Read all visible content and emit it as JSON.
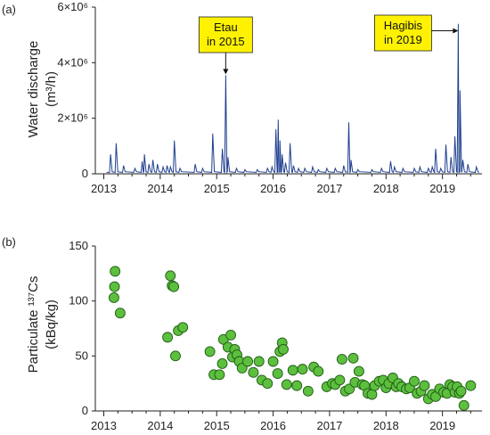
{
  "panel_a_label": "(a)",
  "panel_b_label": "(b)",
  "colors": {
    "discharge_line": "#1f3f8f",
    "marker_fill": "#5cbf3e",
    "marker_stroke": "#1f5c14",
    "annotation_fill": "#fff200"
  },
  "chart_data": [
    {
      "type": "line",
      "ylabel_line1": "Water discharge",
      "ylabel_line2": "(m³/h)",
      "yticks": [
        {
          "value": 0,
          "label": "0"
        },
        {
          "value": 2000000,
          "label": "2×10⁶"
        },
        {
          "value": 4000000,
          "label": "4×10⁶"
        },
        {
          "value": 6000000,
          "label": "6×10⁶"
        }
      ],
      "ylim": [
        0,
        6000000
      ],
      "xlim": [
        2012.85,
        2019.7
      ],
      "xticks": [
        {
          "value": 2013,
          "label": "2013"
        },
        {
          "value": 2014,
          "label": "2014"
        },
        {
          "value": 2015,
          "label": "2015"
        },
        {
          "value": 2016,
          "label": "2016"
        },
        {
          "value": 2017,
          "label": "2017"
        },
        {
          "value": 2018,
          "label": "2018"
        },
        {
          "value": 2019,
          "label": "2019"
        }
      ],
      "baseline": 50000,
      "peaks": [
        [
          2013.12,
          700000
        ],
        [
          2013.22,
          1100000
        ],
        [
          2013.35,
          300000
        ],
        [
          2013.55,
          200000
        ],
        [
          2013.68,
          450000
        ],
        [
          2013.72,
          700000
        ],
        [
          2013.8,
          350000
        ],
        [
          2013.87,
          500000
        ],
        [
          2013.95,
          350000
        ],
        [
          2014.05,
          250000
        ],
        [
          2014.12,
          300000
        ],
        [
          2014.18,
          250000
        ],
        [
          2014.25,
          1200000
        ],
        [
          2014.35,
          200000
        ],
        [
          2014.62,
          350000
        ],
        [
          2014.75,
          200000
        ],
        [
          2014.93,
          1450000
        ],
        [
          2015.1,
          900000
        ],
        [
          2015.16,
          3550000
        ],
        [
          2015.2,
          600000
        ],
        [
          2015.35,
          200000
        ],
        [
          2015.5,
          150000
        ],
        [
          2015.72,
          150000
        ],
        [
          2015.9,
          200000
        ],
        [
          2015.98,
          250000
        ],
        [
          2016.05,
          1600000
        ],
        [
          2016.09,
          1950000
        ],
        [
          2016.12,
          1200000
        ],
        [
          2016.16,
          700000
        ],
        [
          2016.22,
          400000
        ],
        [
          2016.3,
          1100000
        ],
        [
          2016.36,
          300000
        ],
        [
          2016.45,
          200000
        ],
        [
          2016.56,
          200000
        ],
        [
          2016.7,
          250000
        ],
        [
          2016.8,
          150000
        ],
        [
          2016.95,
          200000
        ],
        [
          2017.1,
          200000
        ],
        [
          2017.25,
          300000
        ],
        [
          2017.34,
          1850000
        ],
        [
          2017.38,
          500000
        ],
        [
          2017.5,
          150000
        ],
        [
          2017.75,
          150000
        ],
        [
          2017.92,
          200000
        ],
        [
          2018.08,
          450000
        ],
        [
          2018.15,
          250000
        ],
        [
          2018.3,
          200000
        ],
        [
          2018.5,
          200000
        ],
        [
          2018.6,
          250000
        ],
        [
          2018.75,
          200000
        ],
        [
          2018.82,
          250000
        ],
        [
          2018.88,
          900000
        ],
        [
          2018.97,
          200000
        ],
        [
          2019.06,
          1050000
        ],
        [
          2019.15,
          600000
        ],
        [
          2019.22,
          1350000
        ],
        [
          2019.28,
          5400000
        ],
        [
          2019.31,
          3000000
        ],
        [
          2019.36,
          500000
        ],
        [
          2019.45,
          350000
        ],
        [
          2019.6,
          250000
        ]
      ],
      "annotations": [
        {
          "lines": [
            "Etau",
            "in 2015"
          ],
          "x": 2015.16,
          "y": 3550000,
          "arrow": "down"
        },
        {
          "lines": [
            "Hagibis",
            "in 2019"
          ],
          "x": 2019.28,
          "y": 5150000,
          "arrow": "right"
        }
      ]
    },
    {
      "type": "scatter",
      "ylabel_line1": "Particulate ¹³⁷Cs",
      "ylabel_line2": "(kBq/kg)",
      "yticks": [
        {
          "value": 0,
          "label": "0"
        },
        {
          "value": 50,
          "label": "50"
        },
        {
          "value": 100,
          "label": "100"
        },
        {
          "value": 150,
          "label": "150"
        }
      ],
      "ylim": [
        0,
        150
      ],
      "xlim": [
        2012.85,
        2019.7
      ],
      "xticks": [
        {
          "value": 2013,
          "label": "2013"
        },
        {
          "value": 2014,
          "label": "2014"
        },
        {
          "value": 2015,
          "label": "2015"
        },
        {
          "value": 2016,
          "label": "2016"
        },
        {
          "value": 2017,
          "label": "2017"
        },
        {
          "value": 2018,
          "label": "2018"
        },
        {
          "value": 2019,
          "label": "2019"
        }
      ],
      "points": [
        [
          2013.2,
          127
        ],
        [
          2013.19,
          113
        ],
        [
          2013.18,
          103
        ],
        [
          2013.29,
          89
        ],
        [
          2014.18,
          123
        ],
        [
          2014.21,
          114
        ],
        [
          2014.24,
          113
        ],
        [
          2014.13,
          67
        ],
        [
          2014.32,
          73
        ],
        [
          2014.4,
          76
        ],
        [
          2014.27,
          50
        ],
        [
          2014.88,
          54
        ],
        [
          2014.95,
          33
        ],
        [
          2015.05,
          33
        ],
        [
          2015.1,
          43
        ],
        [
          2015.12,
          65
        ],
        [
          2015.2,
          58
        ],
        [
          2015.25,
          69
        ],
        [
          2015.28,
          49
        ],
        [
          2015.32,
          56
        ],
        [
          2015.36,
          51
        ],
        [
          2015.4,
          45
        ],
        [
          2015.45,
          39
        ],
        [
          2015.55,
          45
        ],
        [
          2015.65,
          35
        ],
        [
          2015.75,
          45
        ],
        [
          2015.8,
          28
        ],
        [
          2015.9,
          25
        ],
        [
          2016.0,
          45
        ],
        [
          2016.08,
          34
        ],
        [
          2016.12,
          54
        ],
        [
          2016.16,
          62
        ],
        [
          2016.18,
          56
        ],
        [
          2016.24,
          24
        ],
        [
          2016.35,
          37
        ],
        [
          2016.42,
          23
        ],
        [
          2016.52,
          38
        ],
        [
          2016.62,
          18
        ],
        [
          2016.72,
          40
        ],
        [
          2016.8,
          36
        ],
        [
          2016.95,
          22
        ],
        [
          2017.05,
          25
        ],
        [
          2017.1,
          24
        ],
        [
          2017.18,
          28
        ],
        [
          2017.22,
          47
        ],
        [
          2017.28,
          18
        ],
        [
          2017.35,
          20
        ],
        [
          2017.42,
          48
        ],
        [
          2017.45,
          26
        ],
        [
          2017.52,
          36
        ],
        [
          2017.58,
          24
        ],
        [
          2017.62,
          23
        ],
        [
          2017.68,
          16
        ],
        [
          2017.75,
          15
        ],
        [
          2017.8,
          23
        ],
        [
          2017.88,
          27
        ],
        [
          2017.95,
          28
        ],
        [
          2018.0,
          21
        ],
        [
          2018.05,
          25
        ],
        [
          2018.12,
          30
        ],
        [
          2018.18,
          22
        ],
        [
          2018.22,
          25
        ],
        [
          2018.28,
          22
        ],
        [
          2018.36,
          20
        ],
        [
          2018.42,
          21
        ],
        [
          2018.5,
          27
        ],
        [
          2018.55,
          16
        ],
        [
          2018.62,
          18
        ],
        [
          2018.68,
          23
        ],
        [
          2018.75,
          11
        ],
        [
          2018.82,
          15
        ],
        [
          2018.88,
          13
        ],
        [
          2018.95,
          20
        ],
        [
          2019.02,
          17
        ],
        [
          2019.08,
          16
        ],
        [
          2019.13,
          24
        ],
        [
          2019.18,
          22
        ],
        [
          2019.22,
          17
        ],
        [
          2019.26,
          22
        ],
        [
          2019.3,
          16
        ],
        [
          2019.33,
          18
        ],
        [
          2019.38,
          5
        ],
        [
          2019.5,
          23
        ]
      ]
    }
  ]
}
